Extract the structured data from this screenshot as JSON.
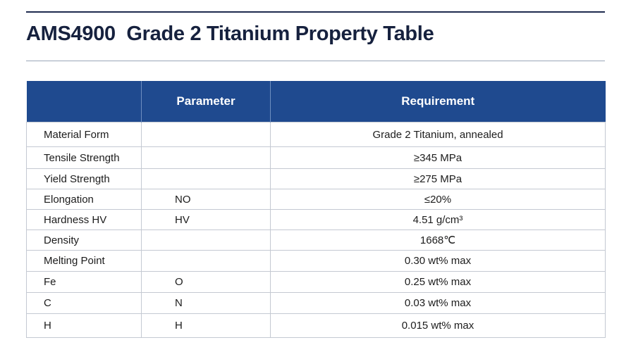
{
  "title": "AMS4900  Grade 2 Titanium Property Table",
  "table": {
    "headers": [
      "",
      "Parameter",
      "Requirement"
    ],
    "rows": [
      {
        "name": "Material Form",
        "param": "",
        "req": "Grade 2 Titanium, annealed"
      },
      {
        "name": "Tensile Strength",
        "param": "",
        "req": "≥345 MPa"
      },
      {
        "name": "Yield Strength",
        "param": "",
        "req": "≥275 MPa"
      },
      {
        "name": "Elongation",
        "param": "NO",
        "req": "≤20%"
      },
      {
        "name": "Hardness HV",
        "param": "HV",
        "req": "4.51 g/cm³"
      },
      {
        "name": "Density",
        "param": "",
        "req": "1668℃"
      },
      {
        "name": "Melting Point",
        "param": "",
        "req": "0.30 wt% max"
      },
      {
        "name": "Fe",
        "param": "O",
        "req": "0.25 wt% max"
      },
      {
        "name": "C",
        "param": "N",
        "req": "0.03 wt% max"
      },
      {
        "name": "H",
        "param": "H",
        "req": "0.015 wt% max"
      }
    ]
  },
  "colors": {
    "header_bg": "#1f4a8f",
    "title_text": "#16213e",
    "rule": "#1e2b4f"
  }
}
